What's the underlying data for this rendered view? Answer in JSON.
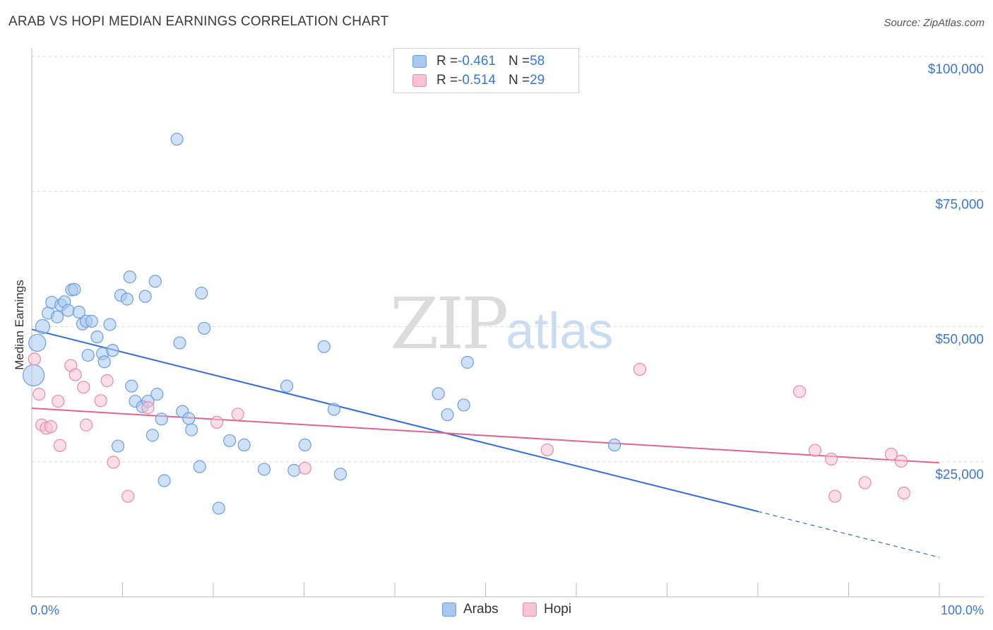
{
  "title": "ARAB VS HOPI MEDIAN EARNINGS CORRELATION CHART",
  "source": "Source: ZipAtlas.com",
  "watermark": {
    "zip": "ZIP",
    "atlas": "atlas"
  },
  "legend": {
    "rows": [
      {
        "r_label": "R = ",
        "r_value": "-0.461",
        "n_label": "N = ",
        "n_value": "58",
        "color": "#a9c8f0",
        "border": "#6a9fe0"
      },
      {
        "r_label": "R = ",
        "r_value": "-0.514",
        "n_label": "N = ",
        "n_value": "29",
        "color": "#f8c3d3",
        "border": "#e88aa8"
      }
    ]
  },
  "bottom_legend": [
    {
      "label": "Arabs",
      "color": "#a9c8f0",
      "border": "#6a9fe0"
    },
    {
      "label": "Hopi",
      "color": "#f8c3d3",
      "border": "#e88aa8"
    }
  ],
  "chart_data": {
    "type": "scatter",
    "title": "ARAB VS HOPI MEDIAN EARNINGS CORRELATION CHART",
    "ylabel": "Median Earnings",
    "xlabel": "",
    "xlim": [
      0,
      100
    ],
    "ylim": [
      0,
      102000
    ],
    "x_tick_labels": [
      "0.0%",
      "100.0%"
    ],
    "y_ticks": [
      {
        "value": 100000,
        "label": "$100,000"
      },
      {
        "value": 75000,
        "label": "$75,000"
      },
      {
        "value": 50000,
        "label": "$50,000"
      },
      {
        "value": 25000,
        "label": "$25,000"
      }
    ],
    "grid": true,
    "series": [
      {
        "name": "Arabs",
        "color": "#6a9fe0",
        "fill": "#a9c8f0",
        "trend_color": "#2f6fd4",
        "trend": {
          "x0": 0,
          "y0": 49500,
          "x1": 80,
          "y1": 15800,
          "x_dash_end": 100,
          "y_dash_end": 7300
        },
        "points": [
          [
            0.2,
            41000
          ],
          [
            0.6,
            47000
          ],
          [
            1.2,
            50000
          ],
          [
            1.8,
            52500
          ],
          [
            2.2,
            54500
          ],
          [
            2.8,
            51800
          ],
          [
            3.2,
            54000
          ],
          [
            3.6,
            54600
          ],
          [
            4.0,
            53000
          ],
          [
            4.4,
            56800
          ],
          [
            4.7,
            56900
          ],
          [
            5.2,
            52700
          ],
          [
            5.6,
            50500
          ],
          [
            6.0,
            51000
          ],
          [
            6.6,
            51000
          ],
          [
            6.2,
            44700
          ],
          [
            7.2,
            48100
          ],
          [
            7.8,
            45000
          ],
          [
            8.0,
            43500
          ],
          [
            8.6,
            50400
          ],
          [
            8.9,
            45600
          ],
          [
            9.8,
            55800
          ],
          [
            10.5,
            55100
          ],
          [
            10.8,
            59200
          ],
          [
            11.0,
            39000
          ],
          [
            11.4,
            36200
          ],
          [
            12.2,
            35200
          ],
          [
            12.5,
            55600
          ],
          [
            12.8,
            36200
          ],
          [
            13.3,
            29900
          ],
          [
            13.6,
            58400
          ],
          [
            13.8,
            37500
          ],
          [
            14.3,
            32900
          ],
          [
            14.6,
            21500
          ],
          [
            16.0,
            84700
          ],
          [
            16.3,
            47000
          ],
          [
            16.6,
            34300
          ],
          [
            17.3,
            33000
          ],
          [
            17.6,
            30900
          ],
          [
            18.5,
            24100
          ],
          [
            18.7,
            56200
          ],
          [
            19.0,
            49700
          ],
          [
            20.6,
            16400
          ],
          [
            21.8,
            28900
          ],
          [
            23.4,
            28100
          ],
          [
            25.6,
            23600
          ],
          [
            28.1,
            39000
          ],
          [
            28.9,
            23400
          ],
          [
            30.1,
            28100
          ],
          [
            32.2,
            46300
          ],
          [
            33.3,
            34700
          ],
          [
            34.0,
            22700
          ],
          [
            44.8,
            37600
          ],
          [
            45.8,
            33700
          ],
          [
            47.6,
            35500
          ],
          [
            48.0,
            43400
          ],
          [
            64.2,
            28100
          ],
          [
            9.5,
            27900
          ]
        ]
      },
      {
        "name": "Hopi",
        "color": "#e88aa8",
        "fill": "#f8c3d3",
        "trend_color": "#e0648c",
        "trend": {
          "x0": 0,
          "y0": 34900,
          "x1": 100,
          "y1": 24800
        },
        "points": [
          [
            0.3,
            44000
          ],
          [
            0.8,
            37500
          ],
          [
            1.1,
            31800
          ],
          [
            1.6,
            31200
          ],
          [
            2.1,
            31500
          ],
          [
            2.9,
            36200
          ],
          [
            3.1,
            28000
          ],
          [
            4.3,
            42800
          ],
          [
            4.8,
            41100
          ],
          [
            5.7,
            38800
          ],
          [
            6.0,
            31800
          ],
          [
            7.6,
            36300
          ],
          [
            8.3,
            40000
          ],
          [
            9.0,
            24900
          ],
          [
            10.6,
            18600
          ],
          [
            12.8,
            35000
          ],
          [
            20.4,
            32300
          ],
          [
            22.7,
            33800
          ],
          [
            30.1,
            23800
          ],
          [
            56.8,
            27200
          ],
          [
            67.0,
            42100
          ],
          [
            84.6,
            38000
          ],
          [
            86.3,
            27100
          ],
          [
            88.1,
            25500
          ],
          [
            88.5,
            18600
          ],
          [
            91.8,
            21100
          ],
          [
            94.7,
            26400
          ],
          [
            95.8,
            25100
          ],
          [
            96.1,
            19200
          ]
        ]
      }
    ]
  }
}
